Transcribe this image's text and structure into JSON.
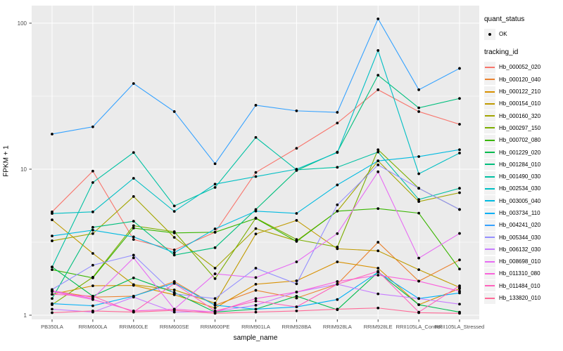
{
  "axes": {
    "x_title": "sample_name",
    "y_title": "FPKM + 1",
    "y_tick_labels": [
      "1",
      "10",
      "100"
    ]
  },
  "legend": {
    "quant_status_title": "quant_status",
    "quant_status_items": [
      {
        "label": "OK",
        "marker": "black-point"
      }
    ],
    "tracking_title": "tracking_id"
  },
  "chart_data": {
    "type": "line",
    "title": "",
    "xlabel": "sample_name",
    "ylabel": "FPKM + 1",
    "y_scale": "log10",
    "y_major_breaks": [
      1,
      10,
      100
    ],
    "y_minor_breaks": [
      3.162,
      31.62
    ],
    "grid": "white-on-gray",
    "legend_position": "right",
    "panel_bg": "#EBEBEB",
    "grid_color": "#FFFFFF",
    "point_color": "#000000",
    "categories": [
      "PB350LA",
      "RRIM600LA",
      "RRIM600LE",
      "RRIM600SE",
      "RRIM600PE",
      "RRIM901LA",
      "RRIM928BA",
      "RRIM928LA",
      "RRIM928LE",
      "RRII105LA_Control",
      "RRII105LA_Stressed"
    ],
    "series": [
      {
        "name": "Hb_000052_020",
        "color": "#F8766D",
        "values": [
          5.1,
          9.7,
          3.3,
          2.8,
          3.7,
          9.5,
          13.9,
          20.7,
          35.0,
          24.8,
          20.3
        ]
      },
      {
        "name": "Hb_000120_040",
        "color": "#EA8331",
        "values": [
          1.47,
          1.33,
          1.35,
          1.7,
          1.17,
          1.48,
          1.31,
          1.63,
          3.16,
          1.71,
          2.39
        ]
      },
      {
        "name": "Hb_000122_210",
        "color": "#D89000",
        "values": [
          1.39,
          1.59,
          1.6,
          1.38,
          1.12,
          1.63,
          1.72,
          2.32,
          2.1,
          1.18,
          1.52
        ]
      },
      {
        "name": "Hb_000154_010",
        "color": "#C09B00",
        "values": [
          4.5,
          2.65,
          1.62,
          1.49,
          1.21,
          3.6,
          4.46,
          2.85,
          2.76,
          2.05,
          1.55
        ]
      },
      {
        "name": "Hb_000160_320",
        "color": "#A3A500",
        "values": [
          3.23,
          3.62,
          6.5,
          3.41,
          2.1,
          3.92,
          3.23,
          5.16,
          11.4,
          6.0,
          6.9
        ]
      },
      {
        "name": "Hb_000297_150",
        "color": "#7CAE00",
        "values": [
          1.18,
          1.82,
          4.1,
          3.73,
          1.78,
          4.63,
          3.3,
          2.93,
          13.6,
          7.4,
          5.3
        ]
      },
      {
        "name": "Hb_000702_080",
        "color": "#39B600",
        "values": [
          2.05,
          1.8,
          3.95,
          3.66,
          3.7,
          4.6,
          3.2,
          5.16,
          5.37,
          5.0,
          2.07
        ]
      },
      {
        "name": "Hb_001229_020",
        "color": "#00BB4E",
        "values": [
          2.14,
          1.35,
          1.8,
          1.43,
          1.05,
          1.1,
          1.35,
          1.09,
          1.97,
          1.18,
          1.05
        ]
      },
      {
        "name": "Hb_001284_010",
        "color": "#00BF7D",
        "values": [
          1.3,
          4.0,
          4.4,
          2.58,
          2.9,
          5.3,
          9.8,
          13.1,
          44.0,
          26.3,
          30.5
        ]
      },
      {
        "name": "Hb_001490_030",
        "color": "#00C1A3",
        "values": [
          2.14,
          8.1,
          13.0,
          5.6,
          7.5,
          16.5,
          9.9,
          10.3,
          13.1,
          6.2,
          7.4
        ]
      },
      {
        "name": "Hb_002534_030",
        "color": "#00BFC4",
        "values": [
          4.97,
          5.1,
          8.66,
          5.14,
          7.9,
          8.9,
          10.0,
          13.0,
          65.0,
          9.3,
          12.9
        ]
      },
      {
        "name": "Hb_003005_040",
        "color": "#00BAE0",
        "values": [
          3.49,
          3.82,
          3.44,
          2.68,
          3.9,
          5.16,
          4.98,
          7.8,
          11.4,
          12.2,
          13.6
        ]
      },
      {
        "name": "Hb_003734_110",
        "color": "#00B0F6",
        "values": [
          1.2,
          1.16,
          1.35,
          1.66,
          1.17,
          1.1,
          1.14,
          1.28,
          1.97,
          1.3,
          1.42
        ]
      },
      {
        "name": "Hb_004241_020",
        "color": "#35A2FF",
        "values": [
          17.4,
          19.5,
          38.6,
          24.8,
          10.9,
          27.4,
          25.1,
          24.5,
          107.0,
          35.0,
          49.0
        ]
      },
      {
        "name": "Hb_005344_030",
        "color": "#9590FF",
        "values": [
          1.5,
          2.2,
          2.58,
          1.4,
          1.3,
          2.1,
          1.64,
          5.7,
          10.7,
          7.4,
          5.3
        ]
      },
      {
        "name": "Hb_006132_030",
        "color": "#C77CFF",
        "values": [
          1.1,
          1.05,
          1.33,
          1.05,
          1.06,
          1.17,
          1.44,
          1.63,
          1.4,
          1.3,
          1.19
        ]
      },
      {
        "name": "Hb_008698_010",
        "color": "#E76BF3",
        "values": [
          1.47,
          1.3,
          2.47,
          1.1,
          1.92,
          1.81,
          2.32,
          3.62,
          9.6,
          2.46,
          3.63
        ]
      },
      {
        "name": "Hb_011310_080",
        "color": "#FA62DB",
        "values": [
          1.45,
          1.28,
          1.07,
          1.1,
          1.05,
          1.3,
          1.44,
          1.7,
          1.88,
          1.71,
          1.46
        ]
      },
      {
        "name": "Hb_011484_010",
        "color": "#FF62BC",
        "values": [
          1.39,
          1.35,
          1.05,
          1.65,
          1.07,
          1.25,
          1.14,
          1.63,
          2.0,
          1.05,
          1.59
        ]
      },
      {
        "name": "Hb_133820_010",
        "color": "#FF6A98",
        "values": [
          1.04,
          1.07,
          1.05,
          1.08,
          1.03,
          1.05,
          1.07,
          1.1,
          1.12,
          1.04,
          1.03
        ]
      }
    ]
  }
}
